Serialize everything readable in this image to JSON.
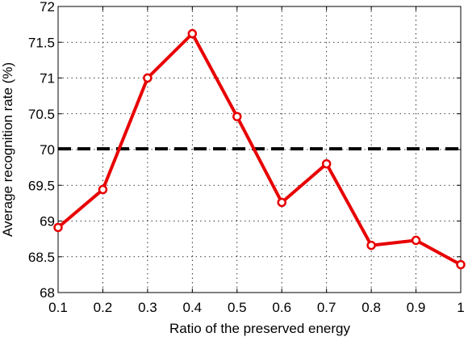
{
  "chart_data": {
    "type": "line",
    "title": "",
    "xlabel": "Ratio of the preserved energy",
    "ylabel": "Average recognition rate (%)",
    "xlim": [
      0.1,
      1.0
    ],
    "ylim": [
      68,
      72
    ],
    "xticks": [
      "0.1",
      "0.2",
      "0.3",
      "0.4",
      "0.5",
      "0.6",
      "0.7",
      "0.8",
      "0.9",
      "1"
    ],
    "yticks": [
      "68",
      "68.5",
      "69",
      "69.5",
      "70",
      "70.5",
      "71",
      "71.5",
      "72"
    ],
    "grid": true,
    "series": [
      {
        "style": "solid line with circle markers",
        "color": "#e80000",
        "x": [
          0.1,
          0.2,
          0.3,
          0.4,
          0.5,
          0.6,
          0.7,
          0.8,
          0.9,
          1.0
        ],
        "y": [
          68.91,
          69.44,
          71.0,
          71.62,
          70.46,
          69.26,
          69.8,
          68.66,
          68.73,
          68.39
        ]
      }
    ],
    "reference_line": {
      "style": "dashed",
      "color": "#000000",
      "y": 70.01
    }
  }
}
